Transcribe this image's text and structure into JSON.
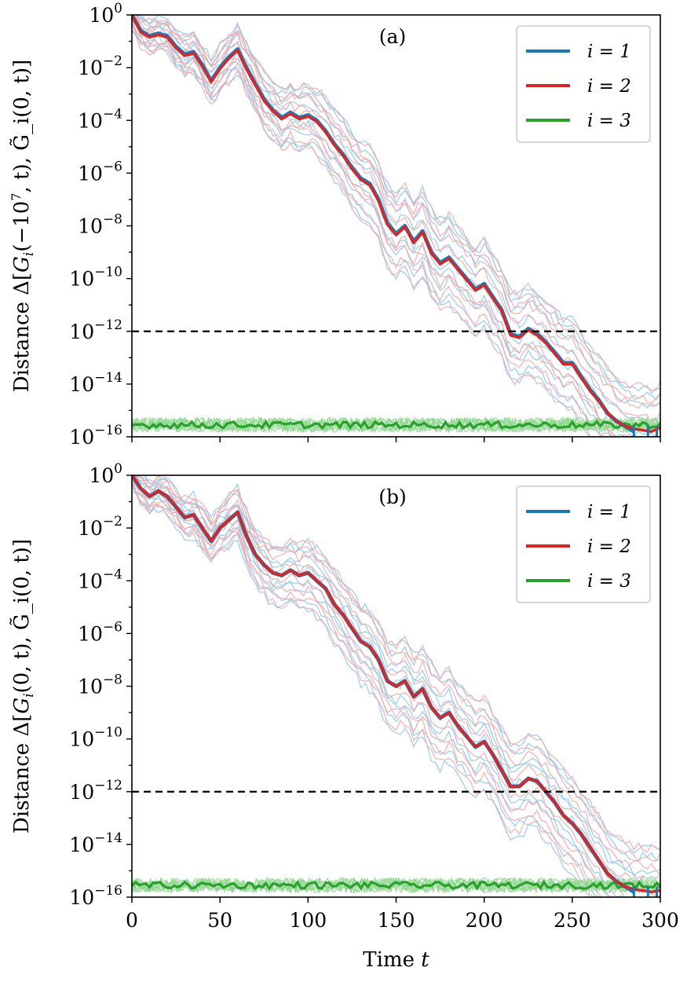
{
  "chart_data": [
    {
      "type": "line",
      "panel_label": "(a)",
      "ylabel": "Distance Δ[G_i(−10^7, t), G̃_i(0, t)]",
      "xlabel": "",
      "yscale": "log",
      "xlim": [
        0,
        300
      ],
      "ylim_exponent": [
        -16,
        0
      ],
      "x_ticks": [
        0,
        50,
        100,
        150,
        200,
        250,
        300
      ],
      "y_tick_labels": [
        "10^0",
        "10^-2",
        "10^-4",
        "10^-6",
        "10^-8",
        "10^-10",
        "10^-12",
        "10^-14",
        "10^-16"
      ],
      "threshold": 1e-12,
      "legend": {
        "placement": "top-right",
        "entries": [
          "i = 1",
          "i = 2",
          "i = 3"
        ]
      },
      "series": [
        {
          "name": "i = 1",
          "color": "#1f77b4",
          "ensemble_color": "#8ec5ea",
          "x": [
            0,
            5,
            10,
            15,
            20,
            25,
            30,
            35,
            40,
            45,
            50,
            55,
            60,
            65,
            70,
            75,
            80,
            85,
            90,
            95,
            100,
            105,
            110,
            115,
            120,
            125,
            130,
            135,
            140,
            145,
            150,
            155,
            160,
            165,
            170,
            175,
            180,
            185,
            190,
            195,
            200,
            205,
            210,
            215,
            220,
            225,
            230,
            235,
            240,
            245,
            250,
            255,
            260,
            265,
            270,
            275,
            280,
            285
          ],
          "log10_values": [
            0,
            -0.6,
            -0.8,
            -0.7,
            -0.8,
            -1.2,
            -1.5,
            -1.4,
            -1.9,
            -2.5,
            -2.0,
            -1.6,
            -1.3,
            -2.0,
            -2.6,
            -3.2,
            -3.6,
            -3.9,
            -3.7,
            -3.9,
            -3.8,
            -4.0,
            -4.4,
            -4.9,
            -5.3,
            -5.8,
            -6.2,
            -6.4,
            -7.0,
            -7.9,
            -8.3,
            -8.0,
            -8.6,
            -8.2,
            -9.0,
            -9.4,
            -9.2,
            -9.6,
            -10.0,
            -10.4,
            -10.2,
            -10.7,
            -11.2,
            -12.1,
            -12.2,
            -11.9,
            -12.1,
            -12.4,
            -12.8,
            -13.2,
            -13.2,
            -13.7,
            -14.2,
            -14.6,
            -15.1,
            -15.4,
            -15.6,
            -15.8
          ]
        },
        {
          "name": "i = 2",
          "color": "#d62728",
          "ensemble_color": "#f0a8a8",
          "x": [
            0,
            5,
            10,
            15,
            20,
            25,
            30,
            35,
            40,
            45,
            50,
            55,
            60,
            65,
            70,
            75,
            80,
            85,
            90,
            95,
            100,
            105,
            110,
            115,
            120,
            125,
            130,
            135,
            140,
            145,
            150,
            155,
            160,
            165,
            170,
            175,
            180,
            185,
            190,
            195,
            200,
            205,
            210,
            215,
            220,
            225,
            230,
            235,
            240,
            245,
            250,
            255,
            260,
            265,
            270,
            275,
            280,
            285,
            290,
            295,
            300
          ],
          "log10_values": [
            0,
            -0.65,
            -0.85,
            -0.75,
            -0.85,
            -1.25,
            -1.55,
            -1.45,
            -1.95,
            -2.55,
            -2.05,
            -1.65,
            -1.35,
            -2.05,
            -2.65,
            -3.25,
            -3.65,
            -3.95,
            -3.75,
            -3.95,
            -3.85,
            -4.05,
            -4.45,
            -4.95,
            -5.35,
            -5.85,
            -6.25,
            -6.45,
            -7.05,
            -7.95,
            -8.35,
            -8.05,
            -8.65,
            -8.25,
            -9.05,
            -9.45,
            -9.25,
            -9.65,
            -10.05,
            -10.45,
            -10.25,
            -10.75,
            -11.25,
            -12.15,
            -12.25,
            -11.95,
            -12.15,
            -12.45,
            -12.85,
            -13.25,
            -13.25,
            -13.75,
            -14.25,
            -14.65,
            -15.1,
            -15.4,
            -15.6,
            -15.7,
            -15.75,
            -15.8,
            -15.65
          ]
        },
        {
          "name": "i = 3",
          "color": "#2ca02c",
          "ensemble_color": "#8fd88f",
          "x_range": [
            0,
            300
          ],
          "log10_mean": -15.55
        }
      ]
    },
    {
      "type": "line",
      "panel_label": "(b)",
      "ylabel": "Distance Δ[G_i(0, t), G̃_i(0, t)]",
      "xlabel": "Time t",
      "yscale": "log",
      "xlim": [
        0,
        300
      ],
      "ylim_exponent": [
        -16,
        0
      ],
      "x_ticks": [
        0,
        50,
        100,
        150,
        200,
        250,
        300
      ],
      "x_tick_labels": [
        "0",
        "50",
        "100",
        "150",
        "200",
        "250",
        "300"
      ],
      "y_tick_labels": [
        "10^0",
        "10^-2",
        "10^-4",
        "10^-6",
        "10^-8",
        "10^-10",
        "10^-12",
        "10^-14",
        "10^-16"
      ],
      "threshold": 1e-12,
      "legend": {
        "placement": "top-right",
        "entries": [
          "i = 1",
          "i = 2",
          "i = 3"
        ]
      },
      "series": [
        {
          "name": "i = 1",
          "color": "#1f77b4",
          "ensemble_color": "#8ec5ea",
          "x": [
            0,
            5,
            10,
            15,
            20,
            25,
            30,
            35,
            40,
            45,
            50,
            55,
            60,
            65,
            70,
            75,
            80,
            85,
            90,
            95,
            100,
            105,
            110,
            115,
            120,
            125,
            130,
            135,
            140,
            145,
            150,
            155,
            160,
            165,
            170,
            175,
            180,
            185,
            190,
            195,
            200,
            205,
            210,
            215,
            220,
            225,
            230,
            235,
            240,
            245,
            250,
            255,
            260,
            265,
            270,
            275,
            280,
            285
          ],
          "log10_values": [
            0,
            -0.5,
            -0.8,
            -0.6,
            -0.8,
            -1.2,
            -1.6,
            -1.5,
            -2.0,
            -2.5,
            -2.0,
            -1.7,
            -1.4,
            -2.3,
            -3.0,
            -3.4,
            -3.7,
            -3.8,
            -3.6,
            -3.8,
            -3.7,
            -4.0,
            -4.3,
            -4.9,
            -5.3,
            -5.8,
            -6.3,
            -6.5,
            -7.0,
            -7.8,
            -8.0,
            -7.8,
            -8.4,
            -8.1,
            -8.8,
            -9.2,
            -9.0,
            -9.5,
            -9.9,
            -10.3,
            -10.1,
            -10.6,
            -11.2,
            -11.8,
            -11.8,
            -11.5,
            -11.6,
            -12.0,
            -12.4,
            -12.9,
            -13.2,
            -13.6,
            -14.1,
            -14.6,
            -15.1,
            -15.4,
            -15.6,
            -15.8
          ]
        },
        {
          "name": "i = 2",
          "color": "#d62728",
          "ensemble_color": "#f0a8a8",
          "x": [
            0,
            5,
            10,
            15,
            20,
            25,
            30,
            35,
            40,
            45,
            50,
            55,
            60,
            65,
            70,
            75,
            80,
            85,
            90,
            95,
            100,
            105,
            110,
            115,
            120,
            125,
            130,
            135,
            140,
            145,
            150,
            155,
            160,
            165,
            170,
            175,
            180,
            185,
            190,
            195,
            200,
            205,
            210,
            215,
            220,
            225,
            230,
            235,
            240,
            245,
            250,
            255,
            260,
            265,
            270,
            275,
            280,
            285,
            290,
            295,
            300
          ],
          "log10_values": [
            0,
            -0.5,
            -0.8,
            -0.6,
            -0.8,
            -1.2,
            -1.6,
            -1.5,
            -2.0,
            -2.5,
            -2.0,
            -1.7,
            -1.4,
            -2.3,
            -3.0,
            -3.4,
            -3.7,
            -3.8,
            -3.6,
            -3.8,
            -3.7,
            -4.0,
            -4.3,
            -4.9,
            -5.3,
            -5.8,
            -6.3,
            -6.5,
            -7.0,
            -7.8,
            -8.0,
            -7.8,
            -8.4,
            -8.1,
            -8.8,
            -9.2,
            -9.0,
            -9.5,
            -9.9,
            -10.3,
            -10.1,
            -10.6,
            -11.2,
            -11.8,
            -11.8,
            -11.5,
            -11.6,
            -12.0,
            -12.4,
            -12.9,
            -13.2,
            -13.6,
            -14.1,
            -14.6,
            -15.1,
            -15.4,
            -15.6,
            -15.7,
            -15.75,
            -15.8,
            -15.75
          ]
        },
        {
          "name": "i = 3",
          "color": "#2ca02c",
          "ensemble_color": "#8fd88f",
          "x_range": [
            0,
            300
          ],
          "log10_mean": -15.55
        }
      ]
    }
  ]
}
